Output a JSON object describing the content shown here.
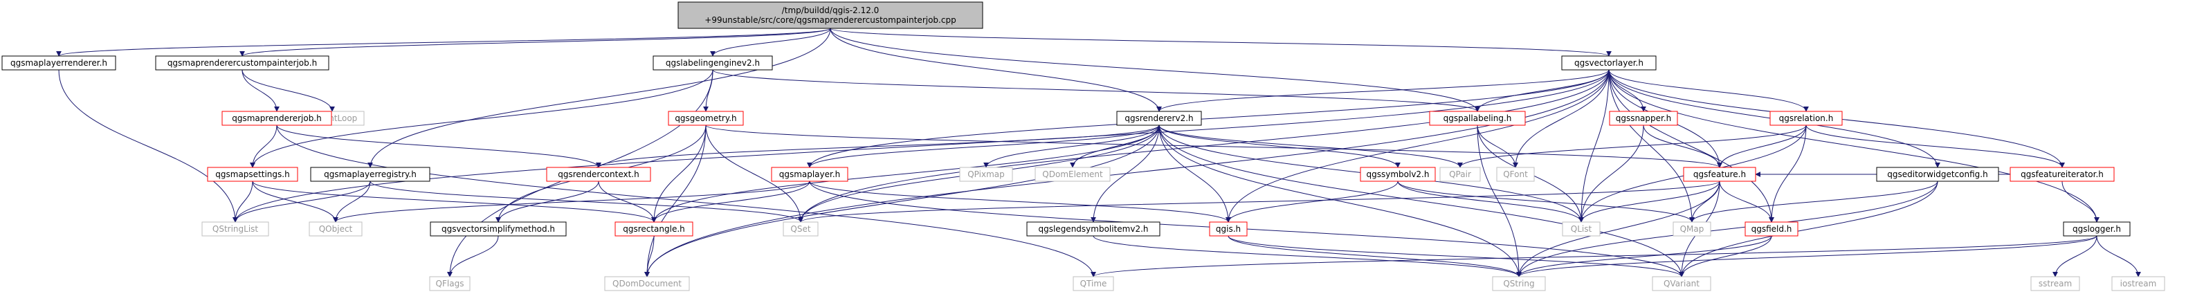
{
  "title": "Include dependency graph for qgsmaprenderercustompainterjob.cpp",
  "colors": {
    "edge": "#191970",
    "root_fill": "#bfbfbf",
    "red_border": "#ff0000",
    "black_border": "#000000",
    "gray_border": "#bfbfbf"
  },
  "nodes": {
    "root": {
      "lines": [
        "/tmp/buildd/qgis-2.12.0",
        "+99unstable/src/core/qgsmaprenderercustompainterjob.cpp"
      ],
      "style": "root"
    },
    "qgsmaplayerrenderer": {
      "lines": [
        "qgsmaplayerrenderer.h"
      ],
      "style": "black"
    },
    "qgsmaprenderercustompainterjob": {
      "lines": [
        "qgsmaprenderercustompainterjob.h"
      ],
      "style": "black"
    },
    "qgslabelingenginev2": {
      "lines": [
        "qgslabelingenginev2.h"
      ],
      "style": "black"
    },
    "qgsvectorlayer": {
      "lines": [
        "qgsvectorlayer.h"
      ],
      "style": "black"
    },
    "qeventloop": {
      "lines": [
        "QEventLoop"
      ],
      "style": "gray"
    },
    "qgsmaprendererjob": {
      "lines": [
        "qgsmaprendererjob.h"
      ],
      "style": "red"
    },
    "qgsgeometry": {
      "lines": [
        "qgsgeometry.h"
      ],
      "style": "red"
    },
    "qgsrendererv2": {
      "lines": [
        "qgsrendererv2.h"
      ],
      "style": "black"
    },
    "qgspallabeling": {
      "lines": [
        "qgspallabeling.h"
      ],
      "style": "red"
    },
    "qgssnapper": {
      "lines": [
        "qgssnapper.h"
      ],
      "style": "red"
    },
    "qgsrelation": {
      "lines": [
        "qgsrelation.h"
      ],
      "style": "red"
    },
    "qgsmapsettings": {
      "lines": [
        "qgsmapsettings.h"
      ],
      "style": "red"
    },
    "qgsmaplayerregistry": {
      "lines": [
        "qgsmaplayerregistry.h"
      ],
      "style": "black"
    },
    "qgsrendercontext": {
      "lines": [
        "qgsrendercontext.h"
      ],
      "style": "red"
    },
    "qgsmaplayer": {
      "lines": [
        "qgsmaplayer.h"
      ],
      "style": "red"
    },
    "qpixmap": {
      "lines": [
        "QPixmap"
      ],
      "style": "gray"
    },
    "qdomelement": {
      "lines": [
        "QDomElement"
      ],
      "style": "gray"
    },
    "qgssymbolv2": {
      "lines": [
        "qgssymbolv2.h"
      ],
      "style": "red"
    },
    "qpair": {
      "lines": [
        "QPair"
      ],
      "style": "gray"
    },
    "qfont": {
      "lines": [
        "QFont"
      ],
      "style": "gray"
    },
    "qgsfeature": {
      "lines": [
        "qgsfeature.h"
      ],
      "style": "red"
    },
    "qgseditorwidgetconfig": {
      "lines": [
        "qgseditorwidgetconfig.h"
      ],
      "style": "black"
    },
    "qgsfeatureiterator": {
      "lines": [
        "qgsfeatureiterator.h"
      ],
      "style": "red"
    },
    "qstringlist": {
      "lines": [
        "QStringList"
      ],
      "style": "gray"
    },
    "qobject": {
      "lines": [
        "QObject"
      ],
      "style": "gray"
    },
    "qgsvectorsimplifymethod": {
      "lines": [
        "qgsvectorsimplifymethod.h"
      ],
      "style": "black"
    },
    "qgsrectangle": {
      "lines": [
        "qgsrectangle.h"
      ],
      "style": "red"
    },
    "qset": {
      "lines": [
        "QSet"
      ],
      "style": "gray"
    },
    "qgslegendsymbolitemv2": {
      "lines": [
        "qgslegendsymbolitemv2.h"
      ],
      "style": "black"
    },
    "qgis": {
      "lines": [
        "qgis.h"
      ],
      "style": "red"
    },
    "qlist": {
      "lines": [
        "QList"
      ],
      "style": "gray"
    },
    "qmap": {
      "lines": [
        "QMap"
      ],
      "style": "gray"
    },
    "qgsfield": {
      "lines": [
        "qgsfield.h"
      ],
      "style": "red"
    },
    "qgslogger": {
      "lines": [
        "qgslogger.h"
      ],
      "style": "black"
    },
    "qflags": {
      "lines": [
        "QFlags"
      ],
      "style": "gray"
    },
    "qdomdocument": {
      "lines": [
        "QDomDocument"
      ],
      "style": "gray"
    },
    "qtime": {
      "lines": [
        "QTime"
      ],
      "style": "gray"
    },
    "qstring": {
      "lines": [
        "QString"
      ],
      "style": "gray"
    },
    "qvariant": {
      "lines": [
        "QVariant"
      ],
      "style": "gray"
    },
    "sstream": {
      "lines": [
        "sstream"
      ],
      "style": "gray"
    },
    "iostream": {
      "lines": [
        "iostream"
      ],
      "style": "gray"
    }
  },
  "edges": [
    [
      "root",
      "qgsmaplayerrenderer"
    ],
    [
      "root",
      "qgsmaprenderercustompainterjob"
    ],
    [
      "root",
      "qgslabelingenginev2"
    ],
    [
      "root",
      "qgsvectorlayer"
    ],
    [
      "root",
      "qgsmaplayerregistry"
    ],
    [
      "root",
      "qgsrendererv2"
    ],
    [
      "root",
      "qgspallabeling"
    ],
    [
      "qgsmaplayerrenderer",
      "qstringlist"
    ],
    [
      "qgsmaprenderercustompainterjob",
      "qeventloop"
    ],
    [
      "qgsmaprenderercustompainterjob",
      "qgsmaprendererjob"
    ],
    [
      "qgslabelingenginev2",
      "qgsgeometry"
    ],
    [
      "qgslabelingenginev2",
      "qgsmapsettings"
    ],
    [
      "qgslabelingenginev2",
      "qgspallabeling"
    ],
    [
      "qgslabelingenginev2",
      "qflags"
    ],
    [
      "qgsmaprendererjob",
      "qgsmapsettings"
    ],
    [
      "qgsmaprendererjob",
      "qgsrendercontext"
    ],
    [
      "qgsmaprendererjob",
      "qtime"
    ],
    [
      "qgsmapsettings",
      "qstringlist"
    ],
    [
      "qgsmapsettings",
      "qobject"
    ],
    [
      "qgsmapsettings",
      "qgsrectangle"
    ],
    [
      "qgsmaplayerregistry",
      "qstringlist"
    ],
    [
      "qgsmaplayerregistry",
      "qobject"
    ],
    [
      "qgsmaplayerregistry",
      "qset"
    ],
    [
      "qgsgeometry",
      "qgsvectorsimplifymethod"
    ],
    [
      "qgsgeometry",
      "qset"
    ],
    [
      "qgsgeometry",
      "qgsrectangle"
    ],
    [
      "qgsgeometry",
      "qdomdocument"
    ],
    [
      "qgsgeometry",
      "qgsfeature"
    ],
    [
      "qgsrendercontext",
      "qgsvectorsimplifymethod"
    ],
    [
      "qgsrendercontext",
      "qgsrectangle"
    ],
    [
      "qgsvectorsimplifymethod",
      "qflags"
    ],
    [
      "qgsrectangle",
      "qdomdocument"
    ],
    [
      "qgsmaplayer",
      "qobject"
    ],
    [
      "qgsmaplayer",
      "qgsrectangle"
    ],
    [
      "qgsmaplayer",
      "qgis"
    ],
    [
      "qgsmaplayer",
      "qvariant"
    ],
    [
      "qgsrendererv2",
      "qgsrendercontext"
    ],
    [
      "qgsrendererv2",
      "qgsmaplayer"
    ],
    [
      "qgsrendererv2",
      "qpixmap"
    ],
    [
      "qgsrendererv2",
      "qdomelement"
    ],
    [
      "qgsrendererv2",
      "qgssymbolv2"
    ],
    [
      "qgsrendererv2",
      "qgslegendsymbolitemv2"
    ],
    [
      "qgsrendererv2",
      "qgis"
    ],
    [
      "qgsrendererv2",
      "qlist"
    ],
    [
      "qgsrendererv2",
      "qstring"
    ],
    [
      "qgsrendererv2",
      "qdomdocument"
    ],
    [
      "qgsrendererv2",
      "qpair"
    ],
    [
      "qgsrendererv2",
      "qvariant"
    ],
    [
      "qgsrendererv2",
      "qgsrectangle"
    ],
    [
      "qgsrendererv2",
      "qset"
    ],
    [
      "qgssymbolv2",
      "qgis"
    ],
    [
      "qgssymbolv2",
      "qmap"
    ],
    [
      "qgssymbolv2",
      "qlist"
    ],
    [
      "qgslegendsymbolitemv2",
      "qstring"
    ],
    [
      "qgis",
      "qstring"
    ],
    [
      "qgis",
      "qvariant"
    ],
    [
      "qgspallabeling",
      "qfont"
    ],
    [
      "qgspallabeling",
      "qlist"
    ],
    [
      "qgspallabeling",
      "qstring"
    ],
    [
      "qgsvectorlayer",
      "qgsmaplayer"
    ],
    [
      "qgsvectorlayer",
      "qgsrendererv2"
    ],
    [
      "qgsvectorlayer",
      "qgspallabeling"
    ],
    [
      "qgsvectorlayer",
      "qgssnapper"
    ],
    [
      "qgsvectorlayer",
      "qgsrelation"
    ],
    [
      "qgsvectorlayer",
      "qgsfeature"
    ],
    [
      "qgsvectorlayer",
      "qgseditorwidgetconfig"
    ],
    [
      "qgsvectorlayer",
      "qgsfeatureiterator"
    ],
    [
      "qgsvectorlayer",
      "qgslogger"
    ],
    [
      "qgsvectorlayer",
      "qfont"
    ],
    [
      "qgsvectorlayer",
      "qlist"
    ],
    [
      "qgsvectorlayer",
      "qmap"
    ],
    [
      "qgsvectorlayer",
      "qset"
    ],
    [
      "qgsvectorlayer",
      "qstringlist"
    ],
    [
      "qgsvectorlayer",
      "qgis"
    ],
    [
      "qgsvectorlayer",
      "qgsfield"
    ],
    [
      "qgsvectorlayer",
      "qdomdocument"
    ],
    [
      "qgssnapper",
      "qgsfeature"
    ],
    [
      "qgssnapper",
      "qlist"
    ],
    [
      "qgsrelation",
      "qgsfeature"
    ],
    [
      "qgsrelation",
      "qgsfield"
    ],
    [
      "qgsrelation",
      "qlist"
    ],
    [
      "qgsrelation",
      "qpair"
    ],
    [
      "qgsrelation",
      "qgsfeatureiterator"
    ],
    [
      "qgsfeature",
      "qmap"
    ],
    [
      "qgsfeature",
      "qlist"
    ],
    [
      "qgsfeature",
      "qstring"
    ],
    [
      "qgsfeature",
      "qvariant"
    ],
    [
      "qgsfeature",
      "qset"
    ],
    [
      "qgsfeature",
      "qgsfield"
    ],
    [
      "qgseditorwidgetconfig",
      "qmap"
    ],
    [
      "qgseditorwidgetconfig",
      "qstring"
    ],
    [
      "qgseditorwidgetconfig",
      "qvariant"
    ],
    [
      "qgsfeatureiterator",
      "qgsfeature"
    ],
    [
      "qgsfeatureiterator",
      "qgslogger"
    ],
    [
      "qgsfield",
      "qstring"
    ],
    [
      "qgsfield",
      "qvariant"
    ],
    [
      "qgslogger",
      "sstream"
    ],
    [
      "qgslogger",
      "iostream"
    ],
    [
      "qgslogger",
      "qstring"
    ],
    [
      "qgslogger",
      "qtime"
    ]
  ]
}
